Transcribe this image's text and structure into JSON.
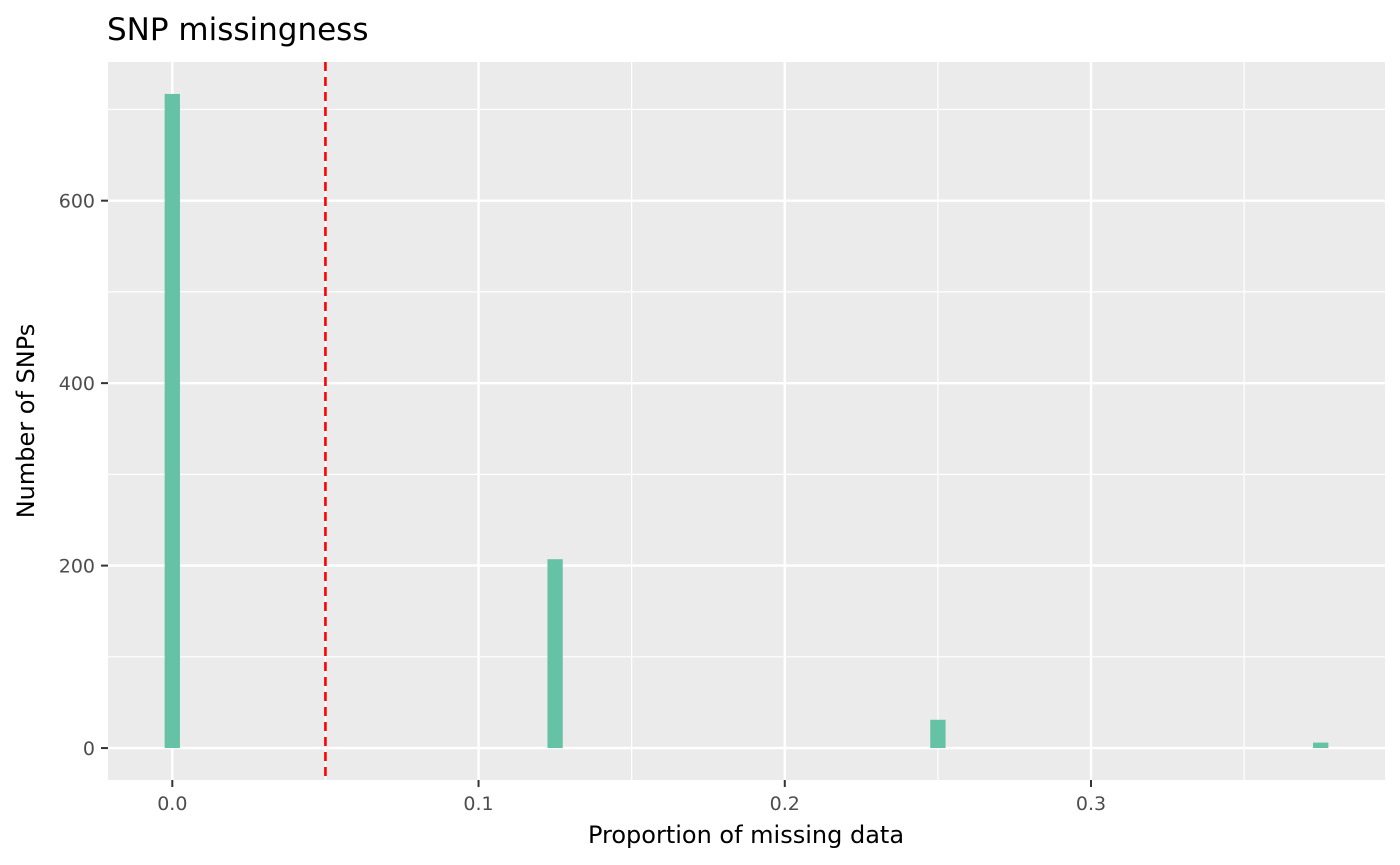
{
  "chart_data": {
    "type": "bar",
    "title": "SNP missingness",
    "xlabel": "Proportion of missing data",
    "ylabel": "Number of SNPs",
    "xlim": [
      -0.021,
      0.396
    ],
    "ylim": [
      -35,
      752
    ],
    "x_ticks": [
      {
        "value": 0.0,
        "label": "0.0"
      },
      {
        "value": 0.1,
        "label": "0.1"
      },
      {
        "value": 0.2,
        "label": "0.2"
      },
      {
        "value": 0.3,
        "label": "0.3"
      }
    ],
    "x_minor": [
      0.05,
      0.15,
      0.25,
      0.35
    ],
    "y_ticks": [
      {
        "value": 0,
        "label": "0"
      },
      {
        "value": 200,
        "label": "200"
      },
      {
        "value": 400,
        "label": "400"
      },
      {
        "value": 600,
        "label": "600"
      }
    ],
    "y_minor": [
      100,
      300,
      500,
      700
    ],
    "bin_width": 0.005,
    "bars": [
      {
        "x": 0.0,
        "value": 717
      },
      {
        "x": 0.125,
        "value": 207
      },
      {
        "x": 0.25,
        "value": 31
      },
      {
        "x": 0.375,
        "value": 6
      }
    ],
    "threshold_line": {
      "x": 0.05,
      "color": "#ff0000",
      "style": "dashed"
    },
    "bar_color": "#66c2a5",
    "panel_background": "#ebebeb",
    "grid": true,
    "legend": "none"
  }
}
